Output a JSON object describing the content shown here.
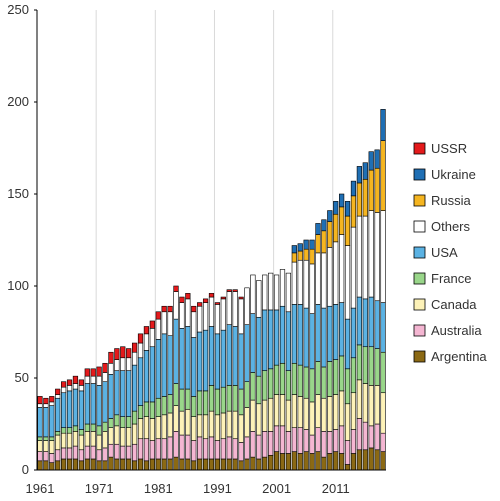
{
  "chart_data": {
    "type": "bar",
    "stacked": true,
    "title": "",
    "xlabel": "",
    "ylabel": "",
    "ylim": [
      0,
      250
    ],
    "yticks": [
      0,
      50,
      100,
      150,
      200,
      250
    ],
    "x_start": 1961,
    "x_end": 2019,
    "xtick_labels": [
      "1961",
      "1971",
      "1981",
      "1991",
      "2001",
      "2011"
    ],
    "grid": "vertical lines at labelled years",
    "legend_position": "right",
    "series": [
      {
        "name": "Argentina",
        "color": "#8B6914",
        "values": [
          5,
          5,
          4,
          5,
          6,
          6,
          6,
          5,
          6,
          6,
          5,
          5,
          7,
          6,
          6,
          6,
          5,
          6,
          5,
          6,
          6,
          6,
          6,
          7,
          6,
          6,
          5,
          6,
          6,
          6,
          6,
          6,
          6,
          6,
          5,
          6,
          7,
          6,
          7,
          8,
          10,
          9,
          9,
          10,
          9,
          10,
          9,
          10,
          7,
          9,
          10,
          9,
          3,
          9,
          11,
          11,
          12,
          11,
          10
        ]
      },
      {
        "name": "Australia",
        "color": "#F4B6D2",
        "values": [
          5,
          5,
          5,
          6,
          6,
          6,
          7,
          6,
          7,
          7,
          6,
          7,
          7,
          8,
          7,
          7,
          9,
          11,
          12,
          10,
          11,
          11,
          12,
          14,
          13,
          13,
          11,
          12,
          11,
          12,
          10,
          11,
          12,
          11,
          10,
          12,
          14,
          13,
          14,
          13,
          14,
          15,
          12,
          13,
          14,
          12,
          10,
          13,
          14,
          12,
          12,
          15,
          13,
          13,
          17,
          15,
          12,
          14,
          10
        ]
      },
      {
        "name": "Canada",
        "color": "#FDF2B8",
        "values": [
          6,
          6,
          7,
          8,
          8,
          8,
          8,
          8,
          8,
          8,
          8,
          9,
          9,
          10,
          10,
          10,
          11,
          11,
          12,
          12,
          12,
          13,
          13,
          14,
          13,
          14,
          13,
          12,
          13,
          14,
          14,
          14,
          14,
          15,
          15,
          16,
          17,
          17,
          17,
          18,
          17,
          17,
          17,
          18,
          17,
          17,
          18,
          18,
          18,
          19,
          19,
          19,
          20,
          20,
          21,
          21,
          22,
          21,
          22
        ]
      },
      {
        "name": "France",
        "color": "#99D68A",
        "values": [
          2,
          2,
          2,
          2,
          3,
          3,
          3,
          3,
          4,
          4,
          5,
          5,
          5,
          6,
          6,
          6,
          7,
          7,
          8,
          9,
          10,
          10,
          10,
          12,
          12,
          11,
          11,
          13,
          13,
          14,
          14,
          14,
          14,
          14,
          14,
          14,
          15,
          15,
          16,
          16,
          16,
          17,
          16,
          17,
          17,
          17,
          18,
          18,
          17,
          19,
          19,
          19,
          19,
          19,
          19,
          20,
          21,
          20,
          22
        ]
      },
      {
        "name": "USA",
        "color": "#5BB2E3",
        "values": [
          16,
          16,
          17,
          18,
          19,
          20,
          20,
          21,
          22,
          22,
          22,
          22,
          24,
          24,
          25,
          25,
          25,
          26,
          28,
          30,
          32,
          34,
          32,
          35,
          33,
          34,
          32,
          32,
          33,
          32,
          30,
          31,
          33,
          32,
          30,
          31,
          32,
          32,
          33,
          32,
          30,
          31,
          32,
          32,
          33,
          32,
          30,
          31,
          32,
          30,
          30,
          29,
          27,
          27,
          26,
          26,
          27,
          26,
          27
        ]
      },
      {
        "name": "Others",
        "color": "#FFFFFF",
        "values": [
          2,
          2,
          2,
          2,
          3,
          3,
          3,
          3,
          4,
          4,
          5,
          5,
          6,
          6,
          7,
          7,
          7,
          8,
          9,
          10,
          11,
          12,
          13,
          15,
          14,
          15,
          14,
          14,
          15,
          16,
          16,
          17,
          18,
          19,
          19,
          20,
          21,
          20,
          19,
          20,
          19,
          20,
          21,
          23,
          24,
          26,
          27,
          28,
          30,
          32,
          34,
          37,
          40,
          44,
          44,
          45,
          47,
          48,
          50
        ]
      },
      {
        "name": "Russia",
        "color": "#F5B520",
        "values": [
          0,
          0,
          0,
          0,
          0,
          0,
          0,
          0,
          0,
          0,
          0,
          0,
          0,
          0,
          0,
          0,
          0,
          0,
          0,
          0,
          0,
          0,
          0,
          0,
          0,
          0,
          0,
          0,
          0,
          0,
          0,
          0,
          0,
          0,
          0,
          0,
          0,
          0,
          0,
          0,
          0,
          0,
          0,
          5,
          5,
          6,
          8,
          10,
          12,
          14,
          15,
          15,
          16,
          17,
          18,
          20,
          22,
          24,
          38
        ]
      },
      {
        "name": "Ukraine",
        "color": "#1F6FB4",
        "values": [
          0,
          0,
          0,
          0,
          0,
          0,
          0,
          0,
          0,
          0,
          0,
          0,
          0,
          0,
          0,
          0,
          0,
          0,
          0,
          0,
          0,
          0,
          0,
          0,
          0,
          0,
          0,
          0,
          0,
          0,
          0,
          0,
          0,
          0,
          0,
          0,
          0,
          0,
          0,
          0,
          0,
          0,
          0,
          4,
          4,
          5,
          5,
          6,
          6,
          6,
          7,
          7,
          8,
          8,
          9,
          9,
          10,
          10,
          17
        ]
      },
      {
        "name": "USSR",
        "color": "#E41A1C",
        "values": [
          4,
          3,
          3,
          3,
          3,
          3,
          4,
          3,
          4,
          4,
          5,
          5,
          6,
          6,
          6,
          5,
          5,
          5,
          4,
          4,
          4,
          3,
          3,
          3,
          3,
          3,
          3,
          2,
          2,
          2,
          1,
          1,
          1,
          1,
          1,
          0,
          0,
          0,
          0,
          0,
          0,
          0,
          0,
          0,
          0,
          0,
          0,
          0,
          0,
          0,
          0,
          0,
          0,
          0,
          0,
          0,
          0,
          0,
          0
        ]
      }
    ]
  }
}
